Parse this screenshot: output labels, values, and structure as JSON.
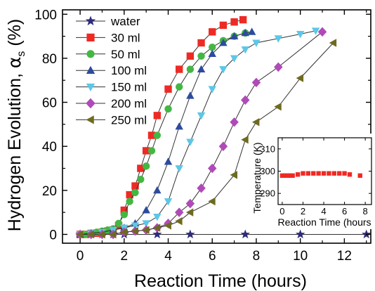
{
  "chart_data": [
    {
      "type": "line",
      "xlabel": "Reaction Time (hours)",
      "ylabel_prefix": "Hydrogen Evolution, ",
      "ylabel_symbol": "α",
      "ylabel_subscript": "s",
      "ylabel_unit": " (%)",
      "xlim": [
        -0.8,
        13.2
      ],
      "ylim": [
        -4,
        102
      ],
      "xticks": [
        0,
        2,
        4,
        6,
        8,
        10,
        12
      ],
      "yticks": [
        0,
        20,
        40,
        60,
        80,
        100
      ],
      "xtick_labels": [
        "0",
        "2",
        "4",
        "6",
        "8",
        "10",
        "12"
      ],
      "ytick_labels": [
        "0",
        "20",
        "40",
        "60",
        "80",
        "100"
      ],
      "grid": false,
      "legend_position": "top-left",
      "series": [
        {
          "name": "water",
          "marker": "star",
          "color": "#2d2b7a",
          "x": [
            0,
            0.5,
            1,
            1.5,
            2,
            3.5,
            5,
            7.5,
            10,
            13
          ],
          "y": [
            0,
            0,
            0,
            0,
            0,
            0,
            0,
            0,
            0,
            0
          ]
        },
        {
          "name": "30 ml",
          "marker": "square",
          "color": "#ee2a24",
          "x": [
            0,
            0.25,
            0.5,
            0.75,
            1,
            1.25,
            1.5,
            1.75,
            2,
            2.25,
            2.5,
            2.75,
            3,
            3.25,
            3.5,
            4,
            4.5,
            5,
            5.5,
            6,
            6.5,
            7,
            7.4
          ],
          "y": [
            0,
            0,
            0.5,
            0.5,
            1,
            1.5,
            2,
            4,
            11,
            18,
            22,
            30,
            38,
            45,
            54,
            66,
            75,
            81,
            87,
            92,
            95,
            96.5,
            97.5
          ]
        },
        {
          "name": "50 ml",
          "marker": "circle",
          "color": "#43b743",
          "x": [
            0,
            0.25,
            0.5,
            0.75,
            1,
            1.25,
            1.5,
            1.75,
            2,
            2.25,
            2.5,
            2.75,
            3,
            3.25,
            3.5,
            4,
            4.5,
            5,
            5.5,
            6,
            6.5,
            7,
            7.5
          ],
          "y": [
            0,
            0,
            0.5,
            1,
            1.5,
            2,
            2.5,
            5,
            9,
            15,
            19,
            25,
            31,
            38,
            45,
            57,
            67,
            75,
            81,
            85,
            88,
            90,
            91.5
          ]
        },
        {
          "name": "100 ml",
          "marker": "triangle-up",
          "color": "#2d4b9e",
          "x": [
            0,
            0.5,
            1,
            1.5,
            2,
            2.5,
            3,
            3.5,
            4,
            4.5,
            5,
            5.5,
            6,
            6.5,
            7,
            7.5,
            7.8
          ],
          "y": [
            0,
            0.5,
            1,
            2,
            3,
            5,
            11,
            20,
            33,
            49,
            63,
            75,
            82,
            87,
            90,
            91.5,
            92
          ]
        },
        {
          "name": "150 ml",
          "marker": "triangle-down",
          "color": "#5cc7e8",
          "x": [
            0,
            0.5,
            1,
            1.5,
            2,
            2.5,
            3,
            3.5,
            4,
            4.5,
            5,
            5.5,
            6,
            6.5,
            7,
            7.5,
            8,
            9,
            10,
            10.7
          ],
          "y": [
            0,
            0.5,
            1,
            2,
            3,
            4,
            5,
            8,
            15,
            30,
            42,
            54,
            66,
            75,
            80,
            84,
            87,
            89,
            91,
            92.5
          ]
        },
        {
          "name": "200 ml",
          "marker": "diamond",
          "color": "#b04ab8",
          "x": [
            0,
            0.5,
            1,
            1.5,
            2,
            2.5,
            3,
            3.5,
            4,
            4.5,
            5,
            5.5,
            6,
            6.5,
            7,
            7.5,
            8,
            9,
            11
          ],
          "y": [
            0,
            0,
            0,
            0,
            1,
            1.5,
            2,
            3,
            5,
            10,
            14,
            21,
            30,
            40,
            51,
            61,
            69,
            76,
            92
          ]
        },
        {
          "name": "250 ml",
          "marker": "triangle-left",
          "color": "#6e6b20",
          "x": [
            0,
            0.5,
            1,
            1.5,
            2,
            2.5,
            3,
            3.5,
            4,
            4.5,
            5,
            6,
            7,
            7.5,
            8,
            9,
            10,
            11.5
          ],
          "y": [
            0,
            0,
            0,
            0,
            1,
            1.5,
            2,
            3,
            4,
            6,
            10,
            15,
            27,
            43,
            51,
            58,
            71,
            87
          ]
        }
      ]
    },
    {
      "type": "scatter",
      "xlabel": "Reaction Time (hours",
      "ylabel": "Temperature (K)",
      "xlim": [
        -0.4,
        8.6
      ],
      "ylim": [
        285,
        315
      ],
      "xticks": [
        0,
        2,
        4,
        6,
        8
      ],
      "yticks": [
        290,
        300,
        310
      ],
      "xtick_labels": [
        "0",
        "2",
        "4",
        "6",
        "8"
      ],
      "ytick_labels": [
        "290",
        "300",
        "310"
      ],
      "grid": false,
      "series": [
        {
          "marker": "square",
          "color": "#ee2a24",
          "x": [
            0,
            0.25,
            0.5,
            0.75,
            1,
            1.5,
            2,
            2.5,
            3,
            3.5,
            4,
            4.5,
            5,
            5.5,
            6,
            6.5,
            7.5
          ],
          "y": [
            298,
            298,
            298,
            298,
            298,
            298.5,
            299,
            299,
            299,
            299,
            299,
            299,
            299,
            299,
            299,
            298.5,
            298
          ]
        }
      ]
    }
  ]
}
